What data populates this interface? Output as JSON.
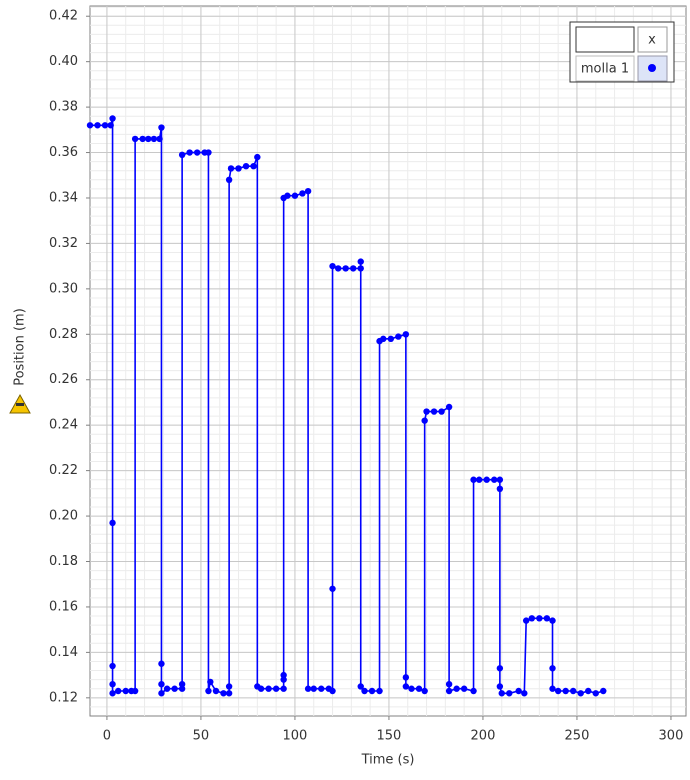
{
  "chart_data": {
    "type": "line",
    "xlabel": "Time (s)",
    "ylabel": "Position (m)",
    "xlim": [
      -9,
      308
    ],
    "ylim": [
      0.112,
      0.4245
    ],
    "xticks": [
      0,
      50,
      100,
      150,
      200,
      250,
      300
    ],
    "yticks": [
      0.12,
      0.14,
      0.16,
      0.18,
      {
        "value": 0.2,
        "label": "0.20"
      },
      0.22,
      0.24,
      0.26,
      0.28,
      {
        "value": 0.3,
        "label": "0.30"
      },
      0.32,
      0.34,
      0.36,
      0.38,
      {
        "value": 0.4,
        "label": "0.40"
      },
      0.42
    ],
    "grid": true,
    "legend_corner": "top-right",
    "legend_button": "x",
    "series": [
      {
        "name": "molla 1",
        "color": "#0000ff",
        "x": [
          -9,
          -5,
          -1,
          2,
          3,
          3,
          3,
          3,
          3,
          6,
          10,
          13,
          15,
          15,
          19,
          22,
          25,
          28,
          29,
          29,
          29,
          29,
          32,
          36,
          40,
          40,
          40,
          44,
          48,
          52,
          54,
          54,
          55,
          58,
          62,
          65,
          65,
          65,
          66,
          70,
          74,
          78,
          80,
          80,
          82,
          86,
          90,
          94,
          94,
          94,
          94,
          96,
          100,
          104,
          107,
          107,
          110,
          114,
          118,
          120,
          120,
          120,
          123,
          127,
          131,
          135,
          135,
          135,
          137,
          141,
          145,
          145,
          147,
          151,
          155,
          159,
          159,
          159,
          162,
          166,
          169,
          169,
          170,
          174,
          178,
          182,
          182,
          182,
          186,
          190,
          195,
          195,
          198,
          202,
          206,
          209,
          209,
          209,
          209,
          210,
          214,
          219,
          222,
          223,
          226,
          230,
          234,
          237,
          237,
          237,
          240,
          244,
          248,
          252,
          256,
          260,
          264
        ],
        "values": [
          0.372,
          0.372,
          0.372,
          0.372,
          0.375,
          0.197,
          0.134,
          0.126,
          0.122,
          0.123,
          0.123,
          0.123,
          0.123,
          0.366,
          0.366,
          0.366,
          0.366,
          0.366,
          0.371,
          0.135,
          0.126,
          0.122,
          0.124,
          0.124,
          0.124,
          0.126,
          0.359,
          0.36,
          0.36,
          0.36,
          0.36,
          0.123,
          0.127,
          0.123,
          0.122,
          0.122,
          0.125,
          0.348,
          0.353,
          0.353,
          0.354,
          0.354,
          0.358,
          0.125,
          0.124,
          0.124,
          0.124,
          0.124,
          0.128,
          0.13,
          0.34,
          0.341,
          0.341,
          0.342,
          0.343,
          0.124,
          0.124,
          0.124,
          0.124,
          0.123,
          0.168,
          0.31,
          0.309,
          0.309,
          0.309,
          0.309,
          0.312,
          0.125,
          0.123,
          0.123,
          0.123,
          0.277,
          0.278,
          0.278,
          0.279,
          0.28,
          0.129,
          0.125,
          0.124,
          0.124,
          0.123,
          0.242,
          0.246,
          0.246,
          0.246,
          0.248,
          0.126,
          0.123,
          0.124,
          0.124,
          0.123,
          0.216,
          0.216,
          0.216,
          0.216,
          0.216,
          0.212,
          0.133,
          0.125,
          0.122,
          0.122,
          0.123,
          0.122,
          0.154,
          0.155,
          0.155,
          0.155,
          0.154,
          0.133,
          0.124,
          0.123,
          0.123,
          0.123,
          0.122,
          0.123,
          0.122,
          0.123
        ]
      }
    ]
  }
}
